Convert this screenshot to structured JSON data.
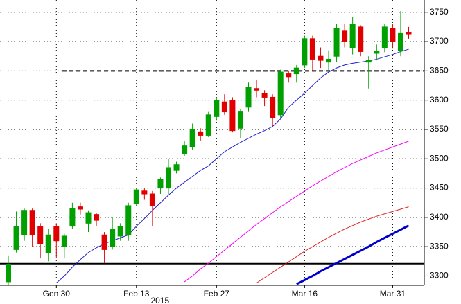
{
  "chart_data": {
    "type": "candlestick",
    "categories": [
      null,
      null,
      null,
      null,
      null,
      null,
      "Gen 30",
      null,
      null,
      null,
      null,
      null,
      null,
      null,
      null,
      null,
      "Feb 13",
      null,
      null,
      null,
      null,
      null,
      null,
      null,
      null,
      null,
      "Feb 27",
      null,
      null,
      null,
      null,
      null,
      null,
      null,
      null,
      null,
      null,
      "Mar 16",
      null,
      null,
      null,
      null,
      null,
      null,
      null,
      null,
      null,
      null,
      "Mar 31",
      null,
      null
    ],
    "year_label": "2015",
    "open": [
      3290,
      3345,
      3370,
      3412,
      3385,
      3340,
      3385,
      3350,
      3385,
      3418,
      3390,
      3405,
      3370,
      3350,
      3368,
      3370,
      3423,
      3445,
      3440,
      3450,
      3450,
      3480,
      3508,
      3520,
      3546,
      3540,
      3572,
      3597,
      3600,
      3552,
      3588,
      3620,
      3612,
      3605,
      3575,
      3645,
      3645,
      3660,
      3705,
      3675,
      3665,
      3675,
      3718,
      3690,
      3725,
      3665,
      3680,
      3690,
      3722,
      3685,
      3716
    ],
    "high": [
      3335,
      3410,
      3415,
      3415,
      3390,
      3380,
      3390,
      3372,
      3425,
      3425,
      3412,
      3408,
      3375,
      3400,
      3390,
      3425,
      3450,
      3450,
      3445,
      3468,
      3500,
      3495,
      3530,
      3560,
      3552,
      3580,
      3605,
      3610,
      3605,
      3585,
      3630,
      3635,
      3617,
      3610,
      3652,
      3650,
      3660,
      3710,
      3710,
      3690,
      3685,
      3730,
      3730,
      3742,
      3728,
      3675,
      3695,
      3730,
      3730,
      3752,
      3725
    ],
    "low": [
      3285,
      3340,
      3360,
      3350,
      3330,
      3325,
      3330,
      3330,
      3380,
      3405,
      3375,
      3385,
      3322,
      3345,
      3360,
      3360,
      3420,
      3430,
      3385,
      3440,
      3440,
      3475,
      3505,
      3515,
      3530,
      3537,
      3565,
      3575,
      3545,
      3535,
      3580,
      3605,
      3590,
      3555,
      3570,
      3630,
      3630,
      3655,
      3650,
      3655,
      3650,
      3665,
      3690,
      3678,
      3675,
      3620,
      3668,
      3682,
      3688,
      3675,
      3705
    ],
    "close": [
      3320,
      3385,
      3412,
      3370,
      3355,
      3370,
      3360,
      3368,
      3415,
      3414,
      3408,
      3395,
      3345,
      3380,
      3385,
      3420,
      3447,
      3440,
      3420,
      3465,
      3485,
      3490,
      3522,
      3550,
      3540,
      3575,
      3600,
      3580,
      3548,
      3580,
      3622,
      3617,
      3605,
      3570,
      3648,
      3640,
      3655,
      3705,
      3670,
      3668,
      3670,
      3723,
      3700,
      3730,
      3683,
      3668,
      3683,
      3725,
      3700,
      3715,
      3713
    ],
    "up_color": "#00a000",
    "down_color": "#e00000",
    "series": [
      {
        "color": "#1f1fcc",
        "width": 1,
        "values": [
          null,
          null,
          null,
          null,
          null,
          null,
          3288,
          3300,
          3315,
          3328,
          3340,
          3348,
          3355,
          3360,
          3365,
          3370,
          3385,
          3398,
          3412,
          3425,
          3438,
          3450,
          3460,
          3470,
          3480,
          3488,
          3500,
          3512,
          3520,
          3528,
          3535,
          3542,
          3548,
          3555,
          3568,
          3588,
          3600,
          3612,
          3625,
          3638,
          3648,
          3655,
          3660,
          3663,
          3665,
          3667,
          3670,
          3674,
          3678,
          3683,
          3687
        ]
      },
      {
        "color": "#ff00ff",
        "width": 1,
        "values": [
          null,
          null,
          null,
          null,
          null,
          null,
          null,
          null,
          null,
          null,
          null,
          null,
          null,
          null,
          null,
          null,
          null,
          null,
          null,
          null,
          null,
          null,
          3290,
          3300,
          3312,
          3322,
          3333,
          3344,
          3355,
          3366,
          3377,
          3388,
          3398,
          3408,
          3418,
          3427,
          3436,
          3445,
          3454,
          3462,
          3470,
          3478,
          3485,
          3492,
          3498,
          3504,
          3510,
          3515,
          3520,
          3525,
          3530
        ]
      },
      {
        "color": "#e02020",
        "width": 1,
        "values": [
          null,
          null,
          null,
          null,
          null,
          null,
          null,
          null,
          null,
          null,
          null,
          null,
          null,
          null,
          null,
          null,
          null,
          null,
          null,
          null,
          null,
          null,
          null,
          null,
          null,
          null,
          null,
          null,
          null,
          null,
          null,
          3288,
          3297,
          3306,
          3315,
          3324,
          3333,
          3342,
          3350,
          3358,
          3366,
          3373,
          3380,
          3386,
          3392,
          3397,
          3402,
          3406,
          3410,
          3414,
          3418
        ]
      },
      {
        "color": "#0000cc",
        "width": 3,
        "values": [
          null,
          null,
          null,
          null,
          null,
          null,
          null,
          null,
          null,
          null,
          null,
          null,
          null,
          null,
          null,
          null,
          null,
          null,
          null,
          null,
          null,
          null,
          null,
          null,
          null,
          null,
          null,
          null,
          null,
          null,
          null,
          null,
          null,
          null,
          null,
          null,
          3286,
          3293,
          3300,
          3308,
          3315,
          3322,
          3329,
          3336,
          3343,
          3350,
          3358,
          3365,
          3372,
          3379,
          3386
        ]
      }
    ],
    "hlines": [
      {
        "value": 3321,
        "style": "solid"
      },
      {
        "value": 3650,
        "style": "dashed"
      }
    ],
    "ylim": [
      3284,
      3771
    ],
    "yticks": [
      3300,
      3350,
      3400,
      3450,
      3500,
      3550,
      3600,
      3650,
      3700,
      3750
    ],
    "grid": true
  }
}
